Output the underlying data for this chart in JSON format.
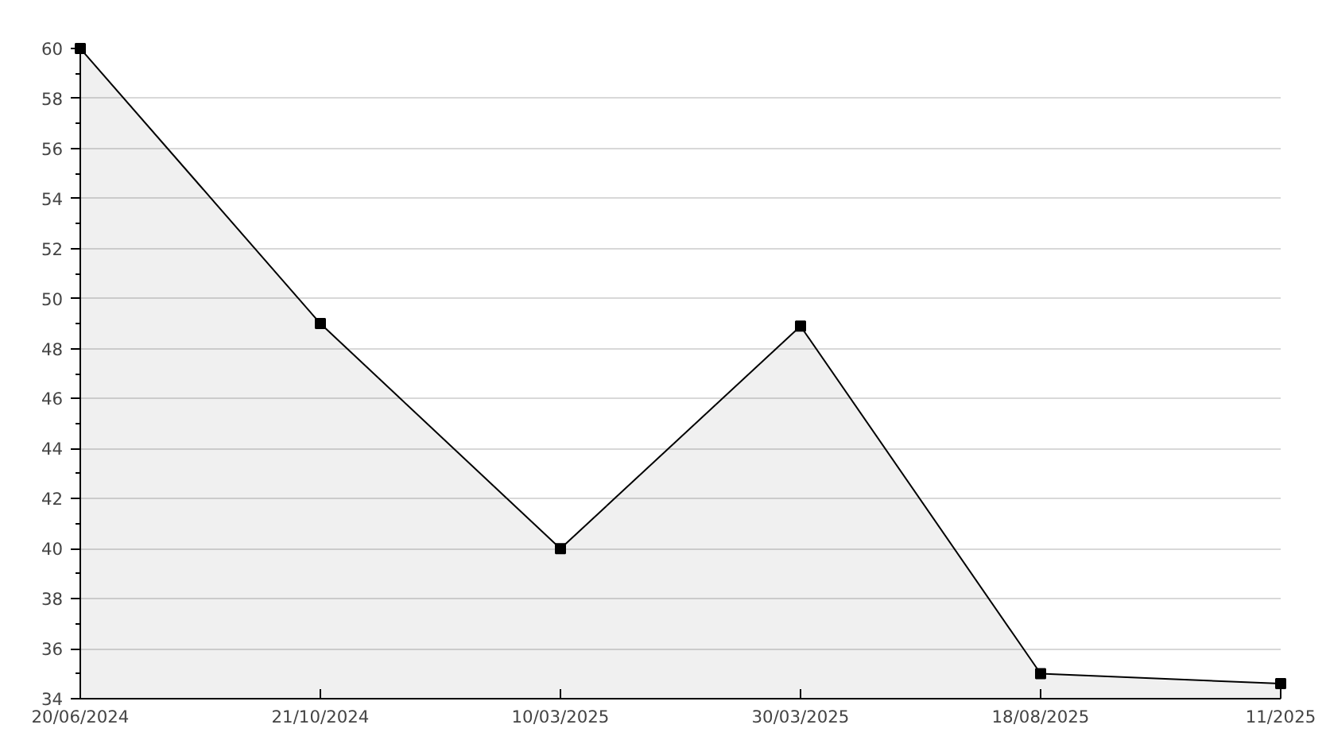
{
  "chart_data": {
    "type": "area",
    "categories": [
      "20/06/2024",
      "21/10/2024",
      "10/03/2025",
      "30/03/2025",
      "18/08/2025",
      "11/2025"
    ],
    "series": [
      {
        "color": "#000000",
        "values": [
          60,
          49,
          40,
          48.9,
          35,
          34.6
        ]
      }
    ],
    "ylim": [
      34,
      60
    ],
    "yticks": [
      34,
      36,
      38,
      40,
      42,
      44,
      46,
      48,
      50,
      52,
      54,
      56,
      58,
      60
    ],
    "grid": "y",
    "marker": "square",
    "line_style": "solid"
  }
}
